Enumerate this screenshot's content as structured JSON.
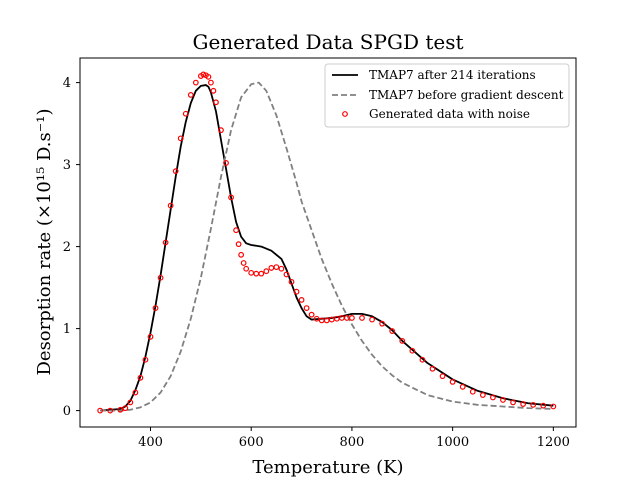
{
  "chart_data": {
    "type": "line",
    "title": "Generated Data SPGD test",
    "xlabel": "Temperature (K)",
    "ylabel": "Desorption rate (×10¹⁵ D.s⁻¹)",
    "xlim": [
      260,
      1245
    ],
    "ylim": [
      -0.2,
      4.3
    ],
    "xticks": [
      400,
      600,
      800,
      1000,
      1200
    ],
    "yticks": [
      0,
      1,
      2,
      3,
      4
    ],
    "grid": false,
    "legend_position": "top-right",
    "series": [
      {
        "name": "TMAP7 after 214 iterations",
        "style": "solid",
        "color": "#000000",
        "x": [
          300,
          320,
          340,
          350,
          360,
          370,
          380,
          390,
          400,
          410,
          420,
          430,
          440,
          450,
          460,
          470,
          480,
          490,
          500,
          510,
          515,
          520,
          530,
          540,
          550,
          560,
          570,
          580,
          590,
          600,
          610,
          620,
          640,
          660,
          670,
          680,
          690,
          700,
          710,
          720,
          740,
          760,
          780,
          800,
          820,
          840,
          860,
          880,
          900,
          950,
          1000,
          1050,
          1100,
          1150,
          1200
        ],
        "y": [
          0.0,
          0.01,
          0.02,
          0.05,
          0.12,
          0.25,
          0.42,
          0.66,
          0.95,
          1.28,
          1.65,
          2.05,
          2.45,
          2.85,
          3.22,
          3.52,
          3.75,
          3.9,
          3.96,
          3.97,
          3.95,
          3.88,
          3.65,
          3.3,
          2.95,
          2.6,
          2.3,
          2.12,
          2.04,
          2.02,
          2.01,
          2.0,
          1.95,
          1.85,
          1.72,
          1.55,
          1.38,
          1.25,
          1.15,
          1.11,
          1.12,
          1.13,
          1.15,
          1.18,
          1.18,
          1.15,
          1.08,
          0.98,
          0.85,
          0.58,
          0.38,
          0.24,
          0.15,
          0.09,
          0.06
        ]
      },
      {
        "name": "TMAP7 before gradient descent",
        "style": "dashed",
        "color": "#808080",
        "x": [
          300,
          340,
          360,
          380,
          400,
          420,
          440,
          460,
          480,
          500,
          520,
          540,
          560,
          580,
          600,
          615,
          630,
          650,
          670,
          690,
          700,
          720,
          740,
          760,
          780,
          800,
          820,
          840,
          860,
          880,
          900,
          950,
          1000,
          1050,
          1100,
          1150,
          1200
        ],
        "y": [
          0.0,
          0.0,
          0.01,
          0.04,
          0.1,
          0.22,
          0.42,
          0.72,
          1.12,
          1.62,
          2.22,
          2.85,
          3.42,
          3.82,
          3.98,
          4.0,
          3.9,
          3.6,
          3.2,
          2.78,
          2.55,
          2.2,
          1.85,
          1.55,
          1.28,
          1.05,
          0.85,
          0.68,
          0.54,
          0.43,
          0.34,
          0.19,
          0.11,
          0.07,
          0.05,
          0.03,
          0.02
        ]
      },
      {
        "name": "Generated data with noise",
        "style": "markers",
        "color": "#ff0000",
        "x": [
          300,
          320,
          340,
          350,
          360,
          370,
          380,
          390,
          400,
          410,
          420,
          430,
          440,
          450,
          460,
          470,
          480,
          490,
          500,
          505,
          510,
          515,
          520,
          525,
          530,
          540,
          550,
          560,
          570,
          575,
          580,
          585,
          590,
          600,
          610,
          620,
          630,
          640,
          650,
          660,
          670,
          680,
          690,
          700,
          710,
          720,
          730,
          740,
          750,
          760,
          770,
          780,
          790,
          800,
          820,
          840,
          860,
          880,
          900,
          920,
          940,
          960,
          980,
          1000,
          1020,
          1040,
          1060,
          1080,
          1100,
          1120,
          1140,
          1160,
          1180,
          1200
        ],
        "y": [
          0.0,
          0.0,
          0.01,
          0.03,
          0.1,
          0.22,
          0.4,
          0.62,
          0.9,
          1.25,
          1.62,
          2.05,
          2.5,
          2.92,
          3.32,
          3.62,
          3.85,
          4.0,
          4.08,
          4.1,
          4.09,
          4.07,
          4.0,
          3.9,
          3.76,
          3.42,
          3.02,
          2.6,
          2.2,
          2.03,
          1.9,
          1.8,
          1.73,
          1.68,
          1.67,
          1.67,
          1.7,
          1.74,
          1.75,
          1.73,
          1.66,
          1.57,
          1.45,
          1.35,
          1.25,
          1.17,
          1.12,
          1.1,
          1.1,
          1.11,
          1.12,
          1.13,
          1.13,
          1.13,
          1.13,
          1.11,
          1.06,
          0.97,
          0.85,
          0.73,
          0.62,
          0.51,
          0.42,
          0.35,
          0.29,
          0.23,
          0.19,
          0.16,
          0.13,
          0.1,
          0.08,
          0.07,
          0.06,
          0.05
        ]
      }
    ]
  }
}
